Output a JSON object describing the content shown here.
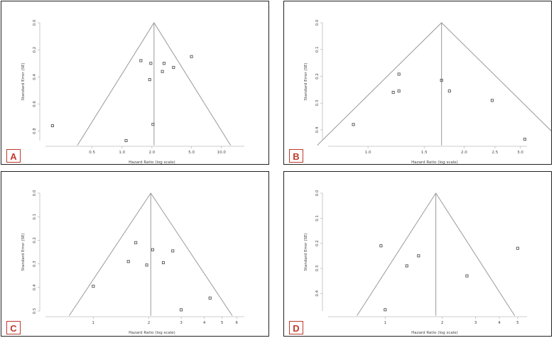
{
  "chart_data": [
    {
      "type": "scatter",
      "panel_label": "A",
      "xlabel": "Hazard Ratio (log scale)",
      "ylabel": "Standard Error (SE)",
      "x_ticks": [
        "0.5",
        "1.0",
        "2.0",
        "5.0",
        "10.0"
      ],
      "y_ticks": [
        "0.0",
        "0.2",
        "0.4",
        "0.6",
        "0.8"
      ],
      "xlim": [
        0.17,
        17
      ],
      "ylim": [
        0,
        0.87
      ],
      "pooled": 2.1,
      "points": [
        {
          "x": 0.2,
          "y": 0.76
        },
        {
          "x": 1.1,
          "y": 0.87
        },
        {
          "x": 1.55,
          "y": 0.28
        },
        {
          "x": 1.95,
          "y": 0.3
        },
        {
          "x": 1.9,
          "y": 0.42
        },
        {
          "x": 2.05,
          "y": 0.75
        },
        {
          "x": 2.55,
          "y": 0.36
        },
        {
          "x": 2.65,
          "y": 0.3
        },
        {
          "x": 3.3,
          "y": 0.33
        },
        {
          "x": 5.0,
          "y": 0.25
        }
      ]
    },
    {
      "type": "scatter",
      "panel_label": "B",
      "xlabel": "Hazard Ratio (log scale)",
      "ylabel": "Standard Error (SE)",
      "x_ticks": [
        "1.0",
        "1.5",
        "2.0",
        "2.5",
        "3.0"
      ],
      "y_ticks": [
        "0.0",
        "0.1",
        "0.2",
        "0.3",
        "0.4"
      ],
      "xlim": [
        0.75,
        3.15
      ],
      "ylim": [
        0,
        0.44
      ],
      "pooled": 1.7,
      "points": [
        {
          "x": 0.9,
          "y": 0.38
        },
        {
          "x": 1.2,
          "y": 0.26
        },
        {
          "x": 1.25,
          "y": 0.192
        },
        {
          "x": 1.25,
          "y": 0.255
        },
        {
          "x": 1.7,
          "y": 0.215
        },
        {
          "x": 1.8,
          "y": 0.255
        },
        {
          "x": 2.45,
          "y": 0.29
        },
        {
          "x": 3.1,
          "y": 0.435
        }
      ]
    },
    {
      "type": "scatter",
      "panel_label": "C",
      "xlabel": "Hazard Ratio (log scale)",
      "ylabel": "Standard Error (SE)",
      "x_ticks": [
        "1",
        "2",
        "3",
        "4",
        "5",
        "6"
      ],
      "y_ticks": [
        "0.0",
        "0.1",
        "0.2",
        "0.3",
        "0.4",
        "0.5"
      ],
      "xlim": [
        0.55,
        6.6
      ],
      "ylim": [
        0,
        0.5
      ],
      "pooled": 2.05,
      "points": [
        {
          "x": 1.0,
          "y": 0.395
        },
        {
          "x": 1.55,
          "y": 0.29
        },
        {
          "x": 1.7,
          "y": 0.21
        },
        {
          "x": 1.95,
          "y": 0.305
        },
        {
          "x": 2.1,
          "y": 0.24
        },
        {
          "x": 2.4,
          "y": 0.295
        },
        {
          "x": 2.7,
          "y": 0.245
        },
        {
          "x": 3.0,
          "y": 0.495
        },
        {
          "x": 4.3,
          "y": 0.445
        }
      ]
    },
    {
      "type": "scatter",
      "panel_label": "D",
      "xlabel": "Hazard Ratio (log scale)",
      "ylabel": "Standard Error (SE)",
      "x_ticks": [
        "1",
        "2",
        "3",
        "4",
        "5"
      ],
      "y_ticks": [
        "0.0",
        "0.1",
        "0.2",
        "0.3",
        "0.4"
      ],
      "xlim": [
        0.5,
        5.6
      ],
      "ylim": [
        0,
        0.47
      ],
      "pooled": 1.85,
      "points": [
        {
          "x": 0.95,
          "y": 0.21
        },
        {
          "x": 1.0,
          "y": 0.465
        },
        {
          "x": 1.3,
          "y": 0.29
        },
        {
          "x": 1.5,
          "y": 0.25
        },
        {
          "x": 2.7,
          "y": 0.33
        },
        {
          "x": 5.0,
          "y": 0.22
        }
      ]
    }
  ]
}
